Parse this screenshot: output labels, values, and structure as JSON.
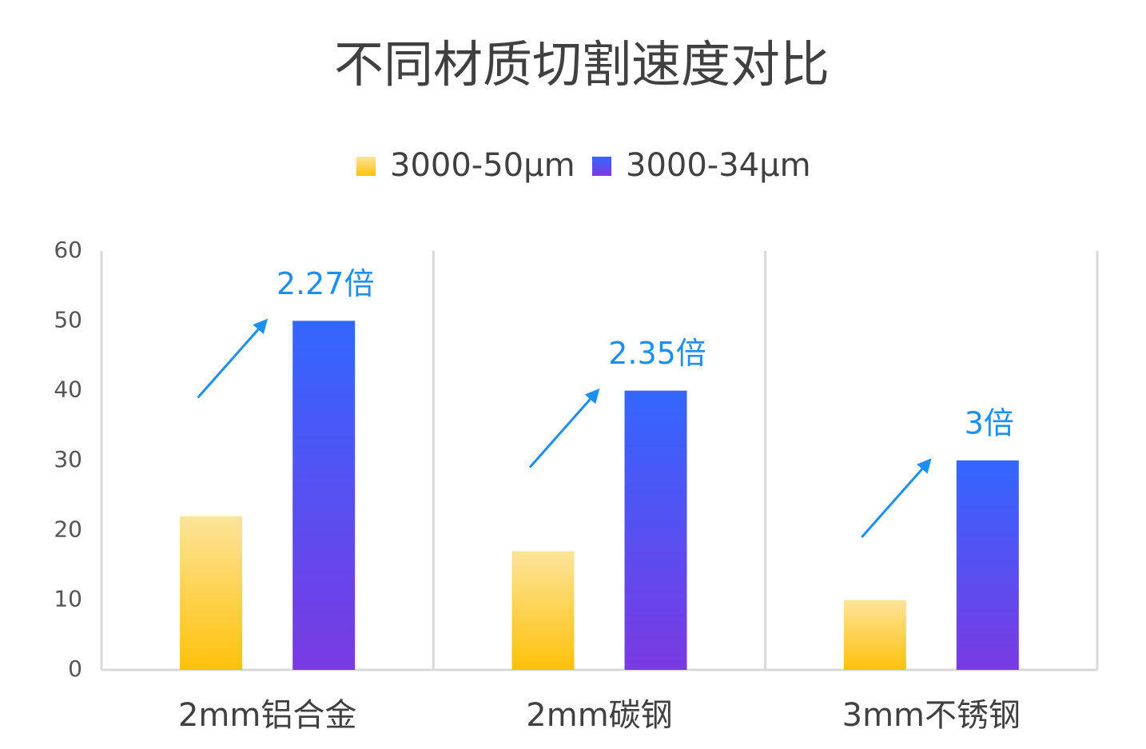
{
  "chart_data": {
    "type": "bar",
    "title": "不同材质切割速度对比",
    "categories": [
      "2mm铝合金",
      "2mm碳钢",
      "3mm不锈钢"
    ],
    "series": [
      {
        "name": "3000-50μm",
        "color": [
          "#fde49a",
          "#fec10a"
        ],
        "values": [
          22,
          17,
          10
        ]
      },
      {
        "name": "3000-34μm",
        "color": [
          "#3366ff",
          "#7a3ae2"
        ],
        "values": [
          50,
          40,
          30
        ]
      }
    ],
    "annotations": [
      "2.27倍",
      "2.35倍",
      "3倍"
    ],
    "annotation_color": "#1e8ff0",
    "ylim": [
      0,
      60
    ],
    "yticks": [
      0,
      10,
      20,
      30,
      40,
      50,
      60
    ],
    "grid": false
  }
}
